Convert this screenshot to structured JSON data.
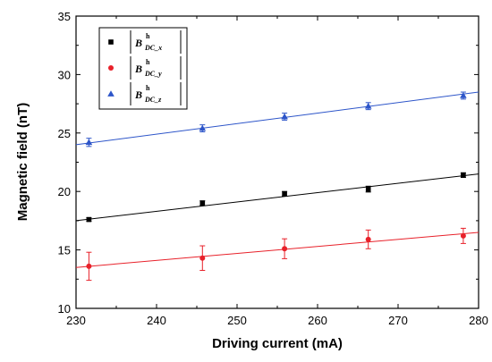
{
  "chart_data": {
    "type": "scatter",
    "xlabel": "Driving current (mA)",
    "ylabel": "Magnetic field (nT)",
    "xlim": [
      230,
      280
    ],
    "ylim": [
      10,
      35
    ],
    "xticks": [
      "230",
      "240",
      "250",
      "260",
      "270",
      "280"
    ],
    "yticks": [
      "10",
      "15",
      "20",
      "25",
      "30",
      "35"
    ],
    "legend_position": "top-left",
    "grid": false,
    "series": [
      {
        "name": "|B^h_DC_x|",
        "legend": {
          "sup": "h",
          "sub": "DC_x"
        },
        "color": "#000000",
        "marker": "square",
        "x": [
          231.6,
          245.7,
          255.9,
          266.3,
          278.1
        ],
        "y": [
          17.6,
          19.0,
          19.8,
          20.2,
          21.4
        ],
        "err": [
          0.15,
          0.2,
          0.2,
          0.25,
          0.2
        ],
        "fit": {
          "x": [
            230,
            280
          ],
          "y": [
            17.5,
            21.5
          ]
        }
      },
      {
        "name": "|B^h_DC_y|",
        "legend": {
          "sup": "h",
          "sub": "DC_y"
        },
        "color": "#e8212a",
        "marker": "circle",
        "x": [
          231.6,
          245.7,
          255.9,
          266.3,
          278.1
        ],
        "y": [
          13.6,
          14.3,
          15.1,
          15.9,
          16.2
        ],
        "err": [
          1.2,
          1.05,
          0.85,
          0.8,
          0.65
        ],
        "fit": {
          "x": [
            230,
            280
          ],
          "y": [
            13.5,
            16.5
          ]
        }
      },
      {
        "name": "|B^h_DC_z|",
        "legend": {
          "sup": "h",
          "sub": "DC_z"
        },
        "color": "#2d55c9",
        "marker": "triangle",
        "x": [
          231.6,
          245.7,
          255.9,
          266.3,
          278.1
        ],
        "y": [
          24.2,
          25.4,
          26.4,
          27.3,
          28.2
        ],
        "err": [
          0.35,
          0.3,
          0.3,
          0.3,
          0.3
        ],
        "fit": {
          "x": [
            230,
            280
          ],
          "y": [
            24.0,
            28.5
          ]
        }
      }
    ]
  }
}
